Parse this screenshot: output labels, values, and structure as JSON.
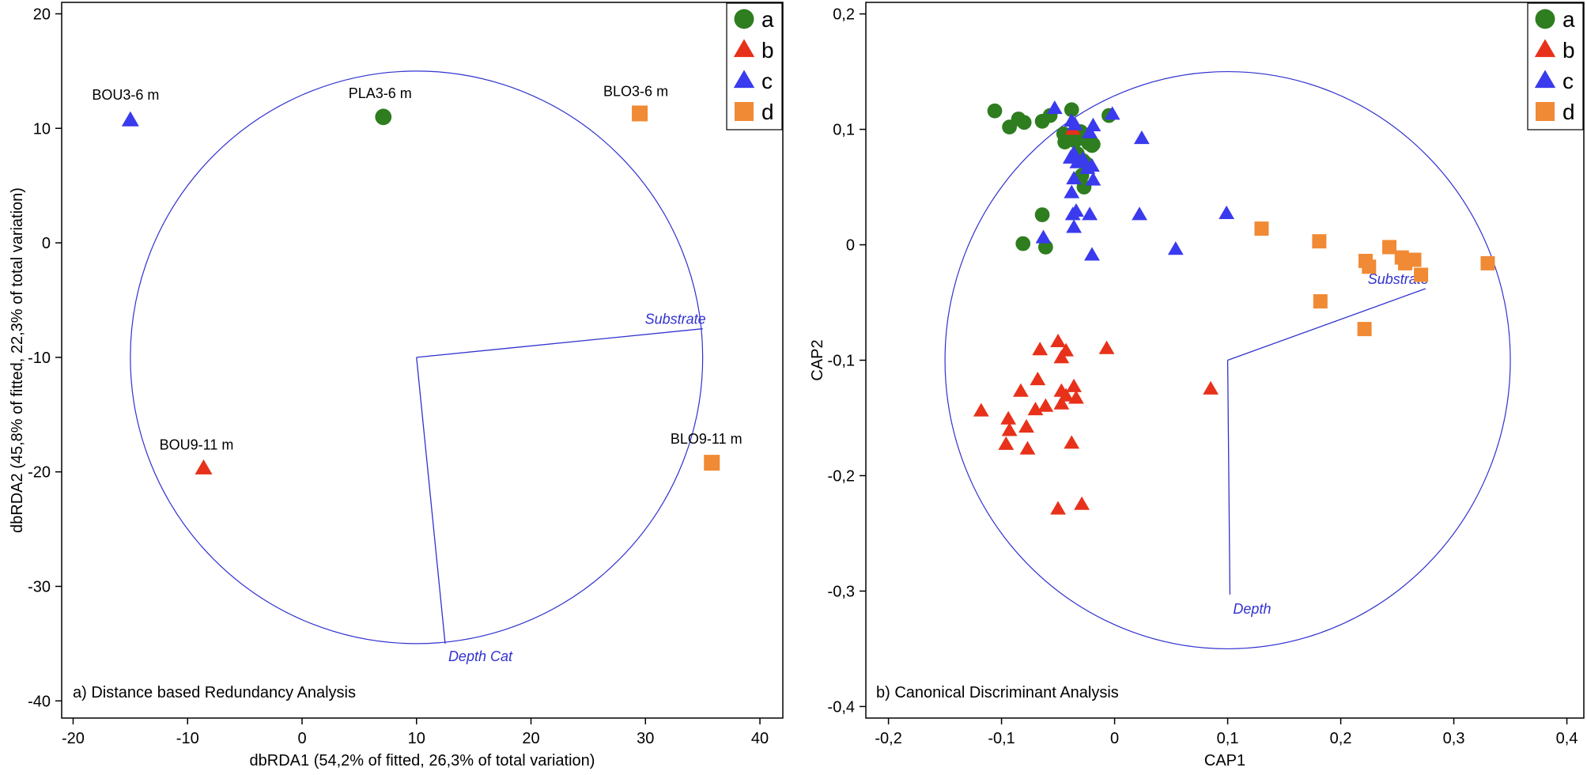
{
  "colors": {
    "a": "#2e7d1f",
    "b": "#e8311a",
    "c": "#3a3aee",
    "d": "#f08a35",
    "vector": "#3232d0"
  },
  "chart_data": [
    {
      "type": "scatter",
      "caption": "a) Distance based Redundancy Analysis",
      "xlabel": "dbRDA1 (54,2% of fitted, 26,3% of total variation)",
      "ylabel": "dbRDA2 (45,8% of fitted, 22,3% of total variation)",
      "xlim": [
        -21,
        42
      ],
      "ylim": [
        -41.5,
        21
      ],
      "xticks": [
        -20,
        -10,
        0,
        10,
        20,
        30,
        40
      ],
      "xtick_labels": [
        "-20",
        "-10",
        "0",
        "10",
        "20",
        "30",
        "40"
      ],
      "yticks": [
        -40,
        -30,
        -20,
        -10,
        0,
        10,
        20
      ],
      "ytick_labels": [
        "-40",
        "-30",
        "-20",
        "-10",
        "0",
        "10",
        "20"
      ],
      "legend": [
        "a",
        "b",
        "c",
        "d"
      ],
      "legend_position": "top-right",
      "circle": {
        "center": [
          10,
          -10
        ],
        "radius": 25
      },
      "vectors": [
        {
          "label": "Substrate",
          "x": 35,
          "y": -7.5
        },
        {
          "label": "Depth Cat",
          "x": 12.5,
          "y": -35
        }
      ],
      "points": [
        {
          "group": "c",
          "x": -15,
          "y": 10.7,
          "label": "BOU3-6 m"
        },
        {
          "group": "a",
          "x": 7.1,
          "y": 11,
          "label": "PLA3-6 m"
        },
        {
          "group": "d",
          "x": 29.5,
          "y": 11.3,
          "label": "BLO3-6 m"
        },
        {
          "group": "b",
          "x": -8.6,
          "y": -19.7,
          "label": "BOU9-11 m"
        },
        {
          "group": "d",
          "x": 35.8,
          "y": -19.2,
          "label": "BLO9-11 m"
        }
      ]
    },
    {
      "type": "scatter",
      "caption": "b) Canonical Discriminant Analysis",
      "xlabel": "CAP1",
      "ylabel": "CAP2",
      "xlim": [
        -0.22,
        0.415
      ],
      "ylim": [
        -0.41,
        0.21
      ],
      "xticks": [
        -0.2,
        -0.1,
        0,
        0.1,
        0.2,
        0.3,
        0.4
      ],
      "xtick_labels": [
        "-0,2",
        "-0,1",
        "0",
        "0,1",
        "0,2",
        "0,3",
        "0,4"
      ],
      "yticks": [
        -0.4,
        -0.3,
        -0.2,
        -0.1,
        0,
        0.1,
        0.2
      ],
      "ytick_labels": [
        "-0,4",
        "-0,3",
        "-0,2",
        "-0,1",
        "0",
        "0,1",
        "0,2"
      ],
      "legend": [
        "a",
        "b",
        "c",
        "d"
      ],
      "legend_position": "top-right",
      "circle": {
        "center": [
          0.1,
          -0.1
        ],
        "radius": 0.25
      },
      "vectors": [
        {
          "label": "Substrate",
          "x": 0.275,
          "y": -0.038
        },
        {
          "label": "Depth",
          "x": 0.102,
          "y": -0.303
        }
      ],
      "points": [
        {
          "group": "a",
          "x": -0.106,
          "y": 0.116
        },
        {
          "group": "a",
          "x": -0.093,
          "y": 0.102
        },
        {
          "group": "a",
          "x": -0.085,
          "y": 0.109
        },
        {
          "group": "a",
          "x": -0.08,
          "y": 0.106
        },
        {
          "group": "a",
          "x": -0.064,
          "y": 0.107
        },
        {
          "group": "a",
          "x": -0.057,
          "y": 0.112
        },
        {
          "group": "a",
          "x": -0.038,
          "y": 0.117
        },
        {
          "group": "a",
          "x": -0.045,
          "y": 0.096
        },
        {
          "group": "a",
          "x": -0.044,
          "y": 0.089
        },
        {
          "group": "a",
          "x": -0.035,
          "y": 0.09
        },
        {
          "group": "a",
          "x": -0.03,
          "y": 0.098
        },
        {
          "group": "a",
          "x": -0.027,
          "y": 0.092
        },
        {
          "group": "a",
          "x": -0.023,
          "y": 0.088
        },
        {
          "group": "a",
          "x": -0.02,
          "y": 0.086
        },
        {
          "group": "a",
          "x": -0.019,
          "y": 0.087
        },
        {
          "group": "a",
          "x": -0.033,
          "y": 0.079
        },
        {
          "group": "a",
          "x": -0.028,
          "y": 0.073
        },
        {
          "group": "a",
          "x": -0.032,
          "y": 0.075
        },
        {
          "group": "a",
          "x": -0.026,
          "y": 0.071
        },
        {
          "group": "a",
          "x": -0.029,
          "y": 0.06
        },
        {
          "group": "a",
          "x": -0.027,
          "y": 0.05
        },
        {
          "group": "a",
          "x": -0.005,
          "y": 0.112
        },
        {
          "group": "a",
          "x": -0.064,
          "y": 0.026
        },
        {
          "group": "a",
          "x": -0.081,
          "y": 0.001
        },
        {
          "group": "a",
          "x": -0.061,
          "y": -0.002
        },
        {
          "group": "b",
          "x": -0.037,
          "y": 0.1
        },
        {
          "group": "b",
          "x": -0.118,
          "y": -0.144
        },
        {
          "group": "b",
          "x": -0.096,
          "y": -0.173
        },
        {
          "group": "b",
          "x": -0.094,
          "y": -0.151
        },
        {
          "group": "b",
          "x": -0.093,
          "y": -0.161
        },
        {
          "group": "b",
          "x": -0.083,
          "y": -0.127
        },
        {
          "group": "b",
          "x": -0.078,
          "y": -0.158
        },
        {
          "group": "b",
          "x": -0.077,
          "y": -0.177
        },
        {
          "group": "b",
          "x": -0.07,
          "y": -0.143
        },
        {
          "group": "b",
          "x": -0.068,
          "y": -0.117
        },
        {
          "group": "b",
          "x": -0.066,
          "y": -0.091
        },
        {
          "group": "b",
          "x": -0.061,
          "y": -0.14
        },
        {
          "group": "b",
          "x": -0.05,
          "y": -0.084
        },
        {
          "group": "b",
          "x": -0.047,
          "y": -0.098
        },
        {
          "group": "b",
          "x": -0.047,
          "y": -0.127
        },
        {
          "group": "b",
          "x": -0.047,
          "y": -0.138
        },
        {
          "group": "b",
          "x": -0.043,
          "y": -0.131
        },
        {
          "group": "b",
          "x": -0.043,
          "y": -0.092
        },
        {
          "group": "b",
          "x": -0.036,
          "y": -0.123
        },
        {
          "group": "b",
          "x": -0.034,
          "y": -0.133
        },
        {
          "group": "b",
          "x": -0.038,
          "y": -0.172
        },
        {
          "group": "b",
          "x": -0.05,
          "y": -0.229
        },
        {
          "group": "b",
          "x": -0.029,
          "y": -0.225
        },
        {
          "group": "b",
          "x": -0.007,
          "y": -0.09
        },
        {
          "group": "b",
          "x": 0.085,
          "y": -0.125
        },
        {
          "group": "c",
          "x": -0.053,
          "y": 0.118
        },
        {
          "group": "c",
          "x": -0.038,
          "y": 0.107
        },
        {
          "group": "c",
          "x": -0.035,
          "y": 0.104
        },
        {
          "group": "c",
          "x": -0.019,
          "y": 0.103
        },
        {
          "group": "c",
          "x": -0.022,
          "y": 0.097
        },
        {
          "group": "c",
          "x": -0.036,
          "y": 0.079
        },
        {
          "group": "c",
          "x": -0.039,
          "y": 0.075
        },
        {
          "group": "c",
          "x": -0.033,
          "y": 0.071
        },
        {
          "group": "c",
          "x": -0.028,
          "y": 0.074
        },
        {
          "group": "c",
          "x": -0.02,
          "y": 0.068
        },
        {
          "group": "c",
          "x": -0.024,
          "y": 0.066
        },
        {
          "group": "c",
          "x": -0.019,
          "y": 0.056
        },
        {
          "group": "c",
          "x": -0.036,
          "y": 0.057
        },
        {
          "group": "c",
          "x": -0.038,
          "y": 0.045
        },
        {
          "group": "c",
          "x": -0.034,
          "y": 0.029
        },
        {
          "group": "c",
          "x": -0.037,
          "y": 0.026
        },
        {
          "group": "c",
          "x": -0.022,
          "y": 0.026
        },
        {
          "group": "c",
          "x": -0.036,
          "y": 0.015
        },
        {
          "group": "c",
          "x": -0.063,
          "y": 0.006
        },
        {
          "group": "c",
          "x": -0.02,
          "y": -0.009
        },
        {
          "group": "c",
          "x": -0.002,
          "y": 0.113
        },
        {
          "group": "c",
          "x": 0.024,
          "y": 0.092
        },
        {
          "group": "c",
          "x": 0.022,
          "y": 0.026
        },
        {
          "group": "c",
          "x": 0.054,
          "y": -0.004
        },
        {
          "group": "c",
          "x": 0.099,
          "y": 0.027
        },
        {
          "group": "d",
          "x": 0.13,
          "y": 0.014
        },
        {
          "group": "d",
          "x": 0.181,
          "y": 0.003
        },
        {
          "group": "d",
          "x": 0.182,
          "y": -0.049
        },
        {
          "group": "d",
          "x": 0.221,
          "y": -0.073
        },
        {
          "group": "d",
          "x": 0.222,
          "y": -0.014
        },
        {
          "group": "d",
          "x": 0.225,
          "y": -0.019
        },
        {
          "group": "d",
          "x": 0.243,
          "y": -0.002
        },
        {
          "group": "d",
          "x": 0.254,
          "y": -0.011
        },
        {
          "group": "d",
          "x": 0.257,
          "y": -0.016
        },
        {
          "group": "d",
          "x": 0.265,
          "y": -0.013
        },
        {
          "group": "d",
          "x": 0.271,
          "y": -0.026
        },
        {
          "group": "d",
          "x": 0.33,
          "y": -0.016
        }
      ]
    }
  ]
}
